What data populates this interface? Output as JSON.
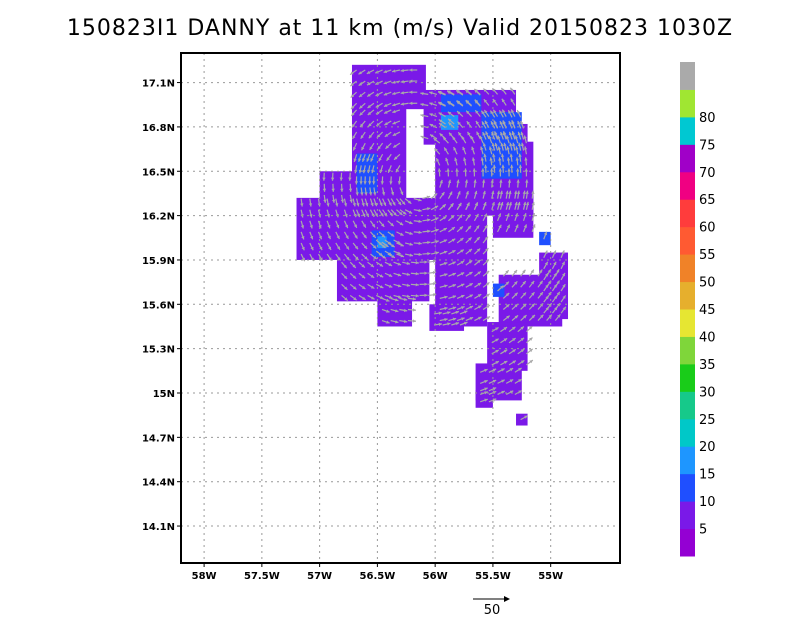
{
  "title": "150823I1 DANNY at 11 km (m/s) Valid 20150823 1030Z",
  "chart_data": {
    "type": "heatmap",
    "title": "150823I1 DANNY at 11 km (m/s) Valid 20150823 1030Z",
    "storm": "DANNY",
    "level": "11 km",
    "units": "m/s",
    "valid": "20150823 1030Z",
    "xlim": [
      -58.2,
      -54.4
    ],
    "ylim": [
      13.85,
      17.3
    ],
    "x_ticks": [
      {
        "value": -58.0,
        "label": "58W"
      },
      {
        "value": -57.5,
        "label": "57.5W"
      },
      {
        "value": -57.0,
        "label": "57W"
      },
      {
        "value": -56.5,
        "label": "56.5W"
      },
      {
        "value": -56.0,
        "label": "56W"
      },
      {
        "value": -55.5,
        "label": "55.5W"
      },
      {
        "value": -55.0,
        "label": "55W"
      }
    ],
    "y_ticks": [
      {
        "value": 17.1,
        "label": "17.1N"
      },
      {
        "value": 16.8,
        "label": "16.8N"
      },
      {
        "value": 16.5,
        "label": "16.5N"
      },
      {
        "value": 16.2,
        "label": "16.2N"
      },
      {
        "value": 15.9,
        "label": "15.9N"
      },
      {
        "value": 15.6,
        "label": "15.6N"
      },
      {
        "value": 15.3,
        "label": "15.3N"
      },
      {
        "value": 15.0,
        "label": "15N"
      },
      {
        "value": 14.7,
        "label": "14.7N"
      },
      {
        "value": 14.4,
        "label": "14.4N"
      },
      {
        "value": 14.1,
        "label": "14.1N"
      }
    ],
    "grid": true,
    "colorbar": {
      "labels": [
        "5",
        "10",
        "15",
        "20",
        "25",
        "30",
        "35",
        "40",
        "45",
        "50",
        "55",
        "60",
        "65",
        "70",
        "75",
        "80"
      ],
      "colors": [
        "#9400d3",
        "#7a19e8",
        "#1f4fff",
        "#1e96ff",
        "#00c8c8",
        "#16c98a",
        "#19cc19",
        "#7fd63a",
        "#e6e632",
        "#e6af2d",
        "#f08228",
        "#ff5a32",
        "#ff3c3c",
        "#f00082",
        "#a000c8",
        "#00c8d2",
        "#a0e632",
        "#aaaaaa"
      ],
      "placement": "right"
    },
    "regions": [
      {
        "lon": [
          -56.72,
          -56.08
        ],
        "lat": [
          16.92,
          17.22
        ],
        "value": 7
      },
      {
        "lon": [
          -56.1,
          -55.3
        ],
        "lat": [
          16.68,
          17.05
        ],
        "value": 7
      },
      {
        "lon": [
          -55.5,
          -55.2
        ],
        "lat": [
          16.6,
          16.82
        ],
        "value": 7
      },
      {
        "lon": [
          -56.72,
          -56.25
        ],
        "lat": [
          16.2,
          16.95
        ],
        "value": 7
      },
      {
        "lon": [
          -56.0,
          -55.15
        ],
        "lat": [
          16.2,
          16.7
        ],
        "value": 7
      },
      {
        "lon": [
          -57.2,
          -56.0
        ],
        "lat": [
          15.9,
          16.32
        ],
        "value": 7
      },
      {
        "lon": [
          -57.0,
          -56.7
        ],
        "lat": [
          16.3,
          16.5
        ],
        "value": 6
      },
      {
        "lon": [
          -56.85,
          -56.05
        ],
        "lat": [
          15.62,
          15.95
        ],
        "value": 7
      },
      {
        "lon": [
          -56.0,
          -55.55
        ],
        "lat": [
          15.45,
          16.25
        ],
        "value": 7
      },
      {
        "lon": [
          -55.5,
          -55.15
        ],
        "lat": [
          16.05,
          16.35
        ],
        "value": 7
      },
      {
        "lon": [
          -55.45,
          -54.9
        ],
        "lat": [
          15.45,
          15.8
        ],
        "value": 7
      },
      {
        "lon": [
          -55.1,
          -54.85
        ],
        "lat": [
          15.5,
          15.95
        ],
        "value": 7
      },
      {
        "lon": [
          -56.5,
          -56.2
        ],
        "lat": [
          15.45,
          15.65
        ],
        "value": 7
      },
      {
        "lon": [
          -56.05,
          -55.75
        ],
        "lat": [
          15.42,
          15.6
        ],
        "value": 7
      },
      {
        "lon": [
          -55.55,
          -55.2
        ],
        "lat": [
          15.15,
          15.48
        ],
        "value": 7
      },
      {
        "lon": [
          -55.65,
          -55.25
        ],
        "lat": [
          14.95,
          15.2
        ],
        "value": 7
      },
      {
        "lon": [
          -55.65,
          -55.5
        ],
        "lat": [
          14.9,
          15.02
        ],
        "value": 7
      },
      {
        "lon": [
          -55.3,
          -55.2
        ],
        "lat": [
          14.78,
          14.86
        ],
        "value": 7
      },
      {
        "lon": [
          -55.1,
          -55.0
        ],
        "lat": [
          16.0,
          16.09
        ],
        "value": 12
      },
      {
        "lon": [
          -56.68,
          -56.5
        ],
        "lat": [
          16.35,
          16.62
        ],
        "value": 12
      },
      {
        "lon": [
          -56.55,
          -56.35
        ],
        "lat": [
          15.92,
          16.1
        ],
        "value": 12
      },
      {
        "lon": [
          -55.95,
          -55.6
        ],
        "lat": [
          16.9,
          17.02
        ],
        "value": 12
      },
      {
        "lon": [
          -55.6,
          -55.25
        ],
        "lat": [
          16.45,
          16.9
        ],
        "value": 12
      },
      {
        "lon": [
          -55.5,
          -55.4
        ],
        "lat": [
          15.65,
          15.74
        ],
        "value": 12
      },
      {
        "lon": [
          -56.5,
          -56.42
        ],
        "lat": [
          15.98,
          16.06
        ],
        "value": 17
      },
      {
        "lon": [
          -55.95,
          -55.8
        ],
        "lat": [
          16.78,
          16.88
        ],
        "value": 17
      }
    ],
    "vector_reference": {
      "value": 50,
      "label": "50"
    }
  }
}
